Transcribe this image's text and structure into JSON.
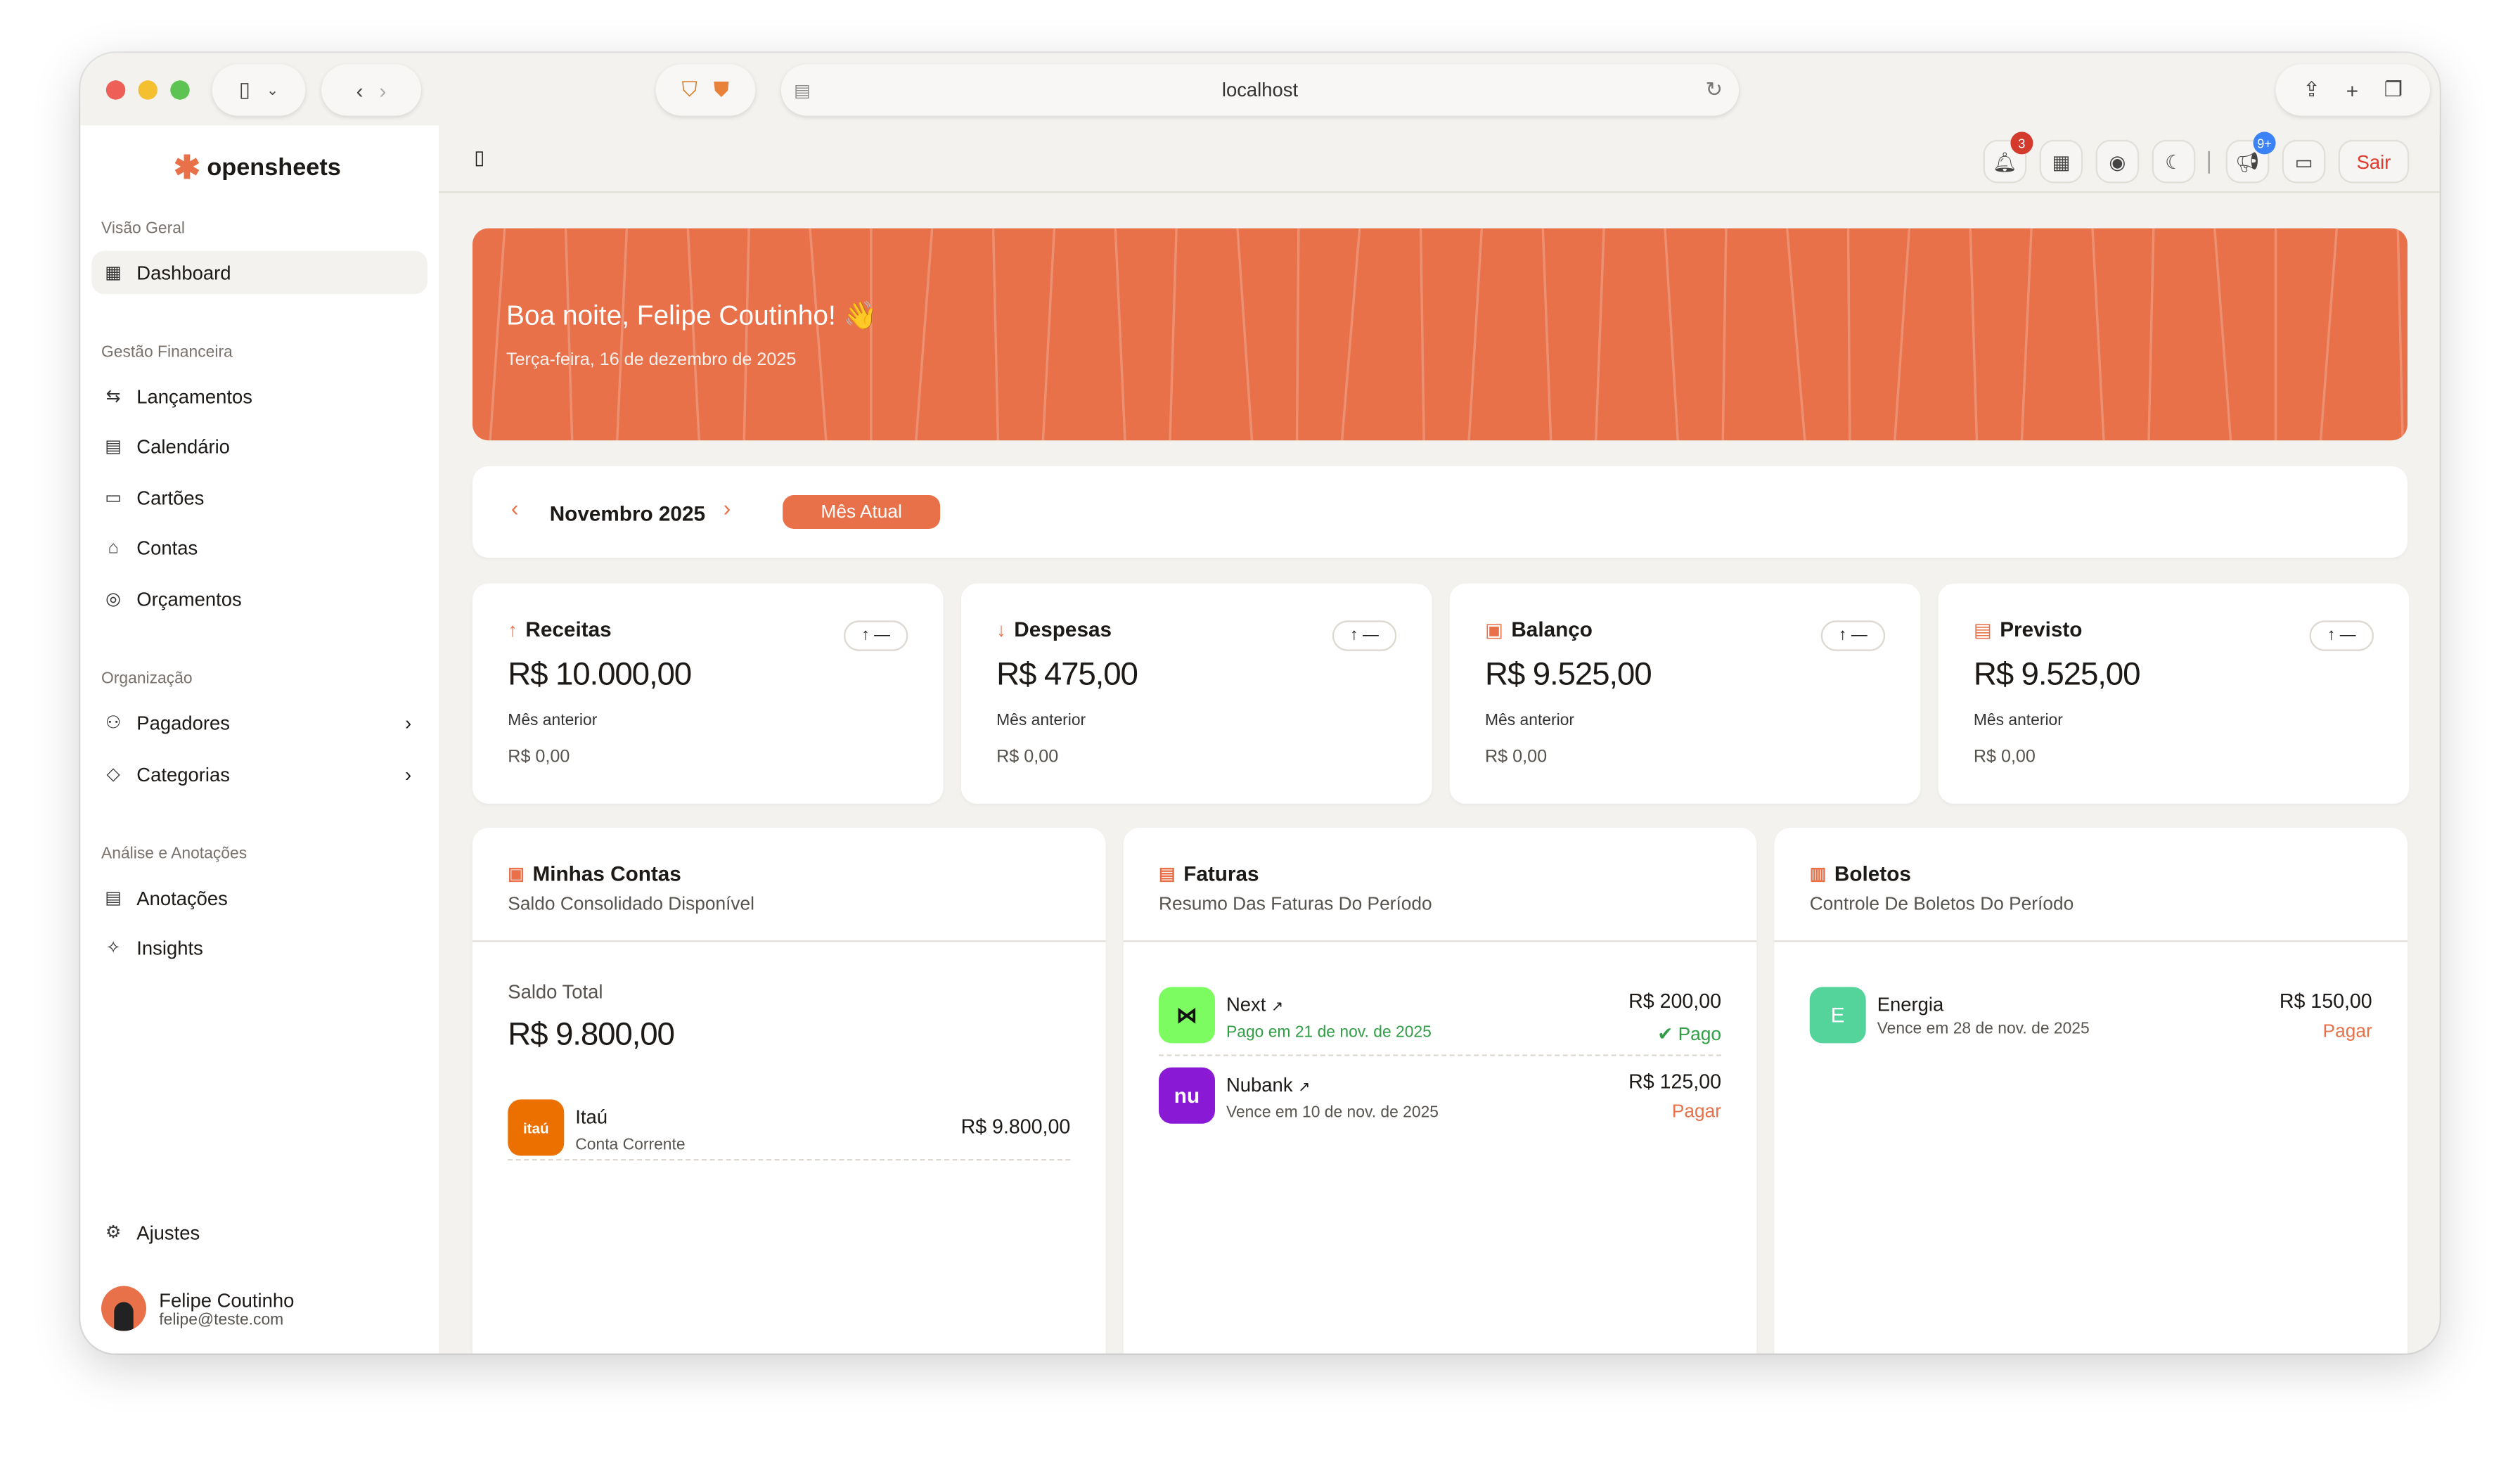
{
  "browser": {
    "url": "localhost"
  },
  "sidebar": {
    "brand": "opensheets",
    "sections": [
      {
        "title": "Visão Geral",
        "items": [
          {
            "label": "Dashboard",
            "icon": "dashboard-icon"
          }
        ]
      },
      {
        "title": "Gestão Financeira",
        "items": [
          {
            "label": "Lançamentos",
            "icon": "arrows-icon"
          },
          {
            "label": "Calendário",
            "icon": "calendar-icon"
          },
          {
            "label": "Cartões",
            "icon": "card-icon"
          },
          {
            "label": "Contas",
            "icon": "bank-icon"
          },
          {
            "label": "Orçamentos",
            "icon": "gauge-icon"
          }
        ]
      },
      {
        "title": "Organização",
        "items": [
          {
            "label": "Pagadores",
            "icon": "users-icon"
          },
          {
            "label": "Categorias",
            "icon": "tag-icon"
          }
        ]
      },
      {
        "title": "Análise e Anotações",
        "items": [
          {
            "label": "Anotações",
            "icon": "notes-icon"
          },
          {
            "label": "Insights",
            "icon": "sparkles-icon"
          }
        ]
      }
    ],
    "settings": "Ajustes",
    "user": {
      "name": "Felipe Coutinho",
      "email": "felipe@teste.com"
    }
  },
  "header": {
    "notifications_count": "3",
    "announcements_count": "9+",
    "logout": "Sair"
  },
  "banner": {
    "greeting": "Boa noite, Felipe Coutinho! 👋",
    "date": "Terça-feira, 16 de dezembro de 2025",
    "color": "#e8714a"
  },
  "period": {
    "label": "Novembro 2025",
    "current_button": "Mês Atual"
  },
  "stats": [
    {
      "title": "Receitas",
      "value": "R$ 10.000,00",
      "prev_label": "Mês anterior",
      "prev_value": "R$ 0,00",
      "trend": "—"
    },
    {
      "title": "Despesas",
      "value": "R$ 475,00",
      "prev_label": "Mês anterior",
      "prev_value": "R$ 0,00",
      "trend": "—"
    },
    {
      "title": "Balanço",
      "value": "R$ 9.525,00",
      "prev_label": "Mês anterior",
      "prev_value": "R$ 0,00",
      "trend": "—"
    },
    {
      "title": "Previsto",
      "value": "R$ 9.525,00",
      "prev_label": "Mês anterior",
      "prev_value": "R$ 0,00",
      "trend": "—"
    }
  ],
  "accounts": {
    "title": "Minhas Contas",
    "subtitle": "Saldo Consolidado Disponível",
    "total_label": "Saldo Total",
    "total": "R$ 9.800,00",
    "items": [
      {
        "name": "Itaú",
        "type": "Conta Corrente",
        "value": "R$ 9.800,00",
        "logo": "itaú"
      }
    ]
  },
  "invoices": {
    "title": "Faturas",
    "subtitle": "Resumo Das Faturas Do Período",
    "items": [
      {
        "name": "Next",
        "date": "Pago em 21 de nov. de 2025",
        "value": "R$ 200,00",
        "status": "Pago"
      },
      {
        "name": "Nubank",
        "date": "Vence em 10 de nov. de 2025",
        "value": "R$ 125,00",
        "status": "Pagar",
        "logo": "nu"
      }
    ]
  },
  "bills": {
    "title": "Boletos",
    "subtitle": "Controle De Boletos Do Período",
    "items": [
      {
        "initial": "E",
        "name": "Energia",
        "date": "Vence em 28 de nov. de 2025",
        "value": "R$ 150,00",
        "status": "Pagar"
      }
    ]
  }
}
